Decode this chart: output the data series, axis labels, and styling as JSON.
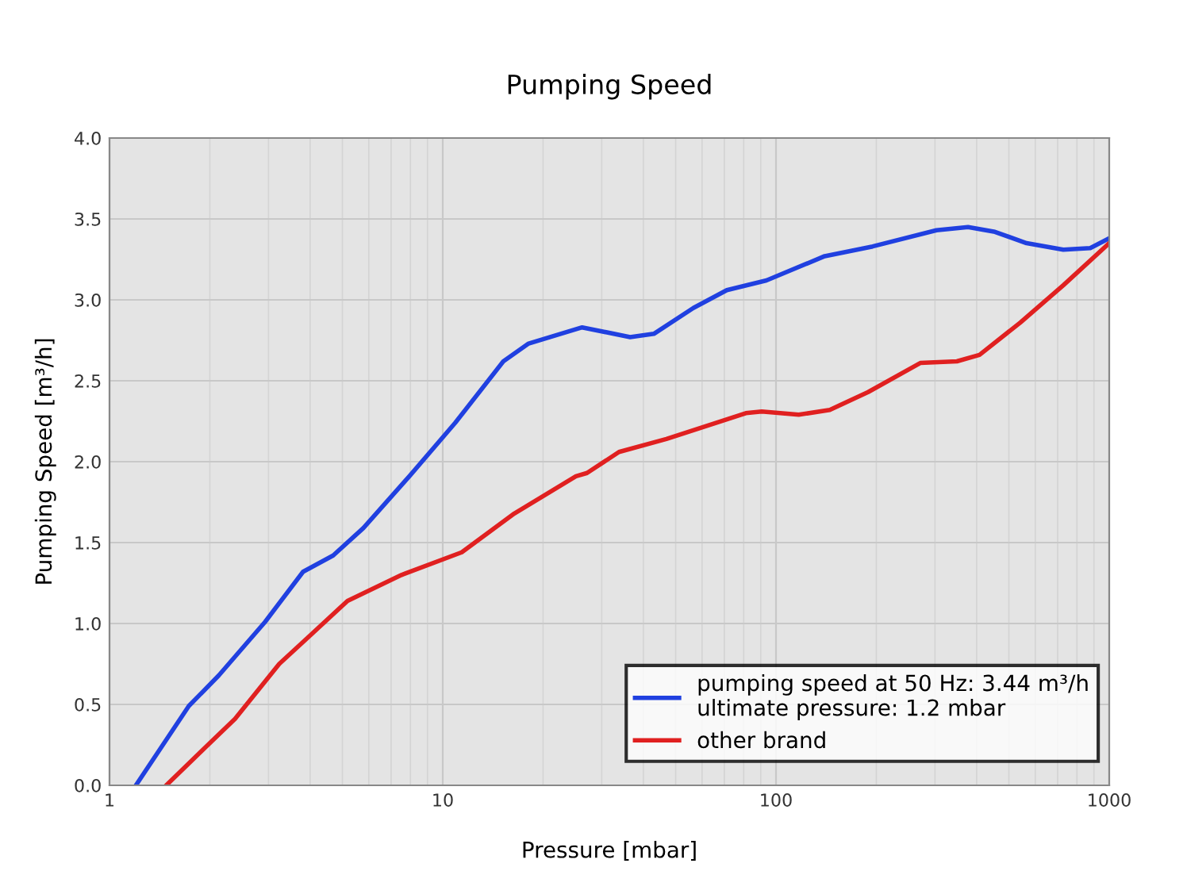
{
  "chart_data": {
    "type": "line",
    "title": "Pumping Speed",
    "xlabel": "Pressure [mbar]",
    "ylabel": "Pumping Speed [m³/h]",
    "log": "x",
    "xlim": [
      1,
      1000
    ],
    "xticks": [
      1,
      10,
      100,
      1000
    ],
    "ylim": [
      0,
      4.0
    ],
    "yticks": [
      {
        "value": 0,
        "label": "0.0"
      },
      {
        "value": 0.5,
        "label": "0.5"
      },
      {
        "value": 1,
        "label": "1.0"
      },
      {
        "value": 1.5,
        "label": "1.5"
      },
      {
        "value": 2,
        "label": "2.0"
      },
      {
        "value": 2.5,
        "label": "2.5"
      },
      {
        "value": 3,
        "label": "3.0"
      },
      {
        "value": 3.5,
        "label": "3.5"
      },
      {
        "value": 4,
        "label": "4.0"
      }
    ],
    "grid": true,
    "legend": "bottom right",
    "marker": "none",
    "line_style": "solid",
    "series": [
      {
        "name": "pumping speed at 50 Hz: 3.44 m³/h\nultimate pressure: 1.2 mbar",
        "color": "#2040e0",
        "x": [
          1.2,
          1.73,
          2.13,
          2.93,
          3.81,
          4.69,
          5.78,
          7.94,
          10.9,
          15.2,
          18.1,
          26.2,
          36.5,
          43.0,
          56.5,
          71.2,
          93.6,
          140,
          195,
          303,
          377,
          454,
          565,
          728,
          877,
          1000
        ],
        "values": [
          0,
          0.49,
          0.68,
          1.01,
          1.32,
          1.42,
          1.59,
          1.91,
          2.24,
          2.62,
          2.73,
          2.83,
          2.77,
          2.79,
          2.95,
          3.06,
          3.12,
          3.27,
          3.33,
          3.43,
          3.45,
          3.42,
          3.35,
          3.31,
          3.32,
          3.38
        ]
      },
      {
        "name": "other brand",
        "color": "#e02020",
        "x": [
          1.48,
          1.93,
          2.38,
          3.23,
          4.02,
          5.18,
          7.52,
          11.4,
          16.4,
          25.1,
          27.1,
          33.8,
          46.9,
          81.2,
          90.6,
          117,
          145,
          189,
          271,
          349,
          408,
          541,
          728,
          1000
        ],
        "values": [
          0,
          0.23,
          0.41,
          0.75,
          0.93,
          1.14,
          1.3,
          1.44,
          1.68,
          1.91,
          1.93,
          2.06,
          2.14,
          2.3,
          2.31,
          2.29,
          2.32,
          2.43,
          2.61,
          2.62,
          2.66,
          2.86,
          3.09,
          3.35
        ]
      }
    ]
  }
}
